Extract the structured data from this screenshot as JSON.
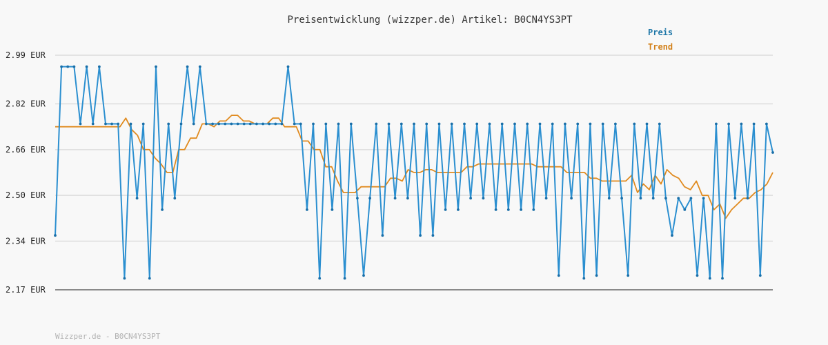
{
  "chart_data": {
    "type": "line",
    "title": "Preisentwicklung (wizzper.de) Artikel: B0CN4YS3PT",
    "y_tick_labels": [
      "2.99 EUR",
      "2.82 EUR",
      "2.66 EUR",
      "2.50 EUR",
      "2.34 EUR",
      "2.17 EUR"
    ],
    "y_ticks": [
      2.99,
      2.82,
      2.66,
      2.5,
      2.34,
      2.17
    ],
    "ylim": [
      2.17,
      2.99
    ],
    "grid": true,
    "legend_position": "top-right",
    "colors": {
      "preis": "#2b8fd0",
      "trend": "#e08a1e"
    },
    "series": [
      {
        "name": "Preis",
        "values": [
          2.36,
          2.95,
          2.95,
          2.95,
          2.75,
          2.95,
          2.75,
          2.95,
          2.75,
          2.75,
          2.75,
          2.21,
          2.75,
          2.49,
          2.75,
          2.21,
          2.95,
          2.45,
          2.75,
          2.49,
          2.75,
          2.95,
          2.75,
          2.95,
          2.75,
          2.75,
          2.75,
          2.75,
          2.75,
          2.75,
          2.75,
          2.75,
          2.75,
          2.75,
          2.75,
          2.75,
          2.75,
          2.95,
          2.75,
          2.75,
          2.45,
          2.75,
          2.21,
          2.75,
          2.45,
          2.75,
          2.21,
          2.75,
          2.49,
          2.22,
          2.49,
          2.75,
          2.36,
          2.75,
          2.49,
          2.75,
          2.49,
          2.75,
          2.36,
          2.75,
          2.36,
          2.75,
          2.45,
          2.75,
          2.45,
          2.75,
          2.49,
          2.75,
          2.49,
          2.75,
          2.45,
          2.75,
          2.45,
          2.75,
          2.45,
          2.75,
          2.45,
          2.75,
          2.49,
          2.75,
          2.22,
          2.75,
          2.49,
          2.75,
          2.21,
          2.75,
          2.22,
          2.75,
          2.49,
          2.75,
          2.49,
          2.22,
          2.75,
          2.49,
          2.75,
          2.49,
          2.75,
          2.49,
          2.36,
          2.49,
          2.45,
          2.49,
          2.22,
          2.49,
          2.21,
          2.75,
          2.21,
          2.75,
          2.49,
          2.75,
          2.49,
          2.75,
          2.22,
          2.75,
          2.65
        ]
      },
      {
        "name": "Trend",
        "values": [
          2.74,
          2.74,
          2.74,
          2.74,
          2.74,
          2.74,
          2.74,
          2.74,
          2.74,
          2.74,
          2.74,
          2.74,
          2.77,
          2.73,
          2.71,
          2.66,
          2.66,
          2.63,
          2.61,
          2.58,
          2.58,
          2.66,
          2.66,
          2.7,
          2.7,
          2.75,
          2.75,
          2.74,
          2.76,
          2.76,
          2.78,
          2.78,
          2.76,
          2.76,
          2.75,
          2.75,
          2.75,
          2.77,
          2.77,
          2.74,
          2.74,
          2.74,
          2.69,
          2.69,
          2.66,
          2.66,
          2.6,
          2.6,
          2.55,
          2.51,
          2.51,
          2.51,
          2.53,
          2.53,
          2.53,
          2.53,
          2.53,
          2.56,
          2.56,
          2.55,
          2.59,
          2.58,
          2.58,
          2.59,
          2.59,
          2.58,
          2.58,
          2.58,
          2.58,
          2.58,
          2.6,
          2.6,
          2.61,
          2.61,
          2.61,
          2.61,
          2.61,
          2.61,
          2.61,
          2.61,
          2.61,
          2.61,
          2.6,
          2.6,
          2.6,
          2.6,
          2.6,
          2.58,
          2.58,
          2.58,
          2.58,
          2.56,
          2.56,
          2.55,
          2.55,
          2.55,
          2.55,
          2.55,
          2.57,
          2.51,
          2.54,
          2.52,
          2.57,
          2.54,
          2.59,
          2.57,
          2.56,
          2.53,
          2.52,
          2.55,
          2.5,
          2.5,
          2.45,
          2.47,
          2.42,
          2.45,
          2.47,
          2.49,
          2.49,
          2.51,
          2.52,
          2.54,
          2.58
        ]
      }
    ]
  },
  "footer_text": "Wizzper.de - B0CN4YS3PT"
}
